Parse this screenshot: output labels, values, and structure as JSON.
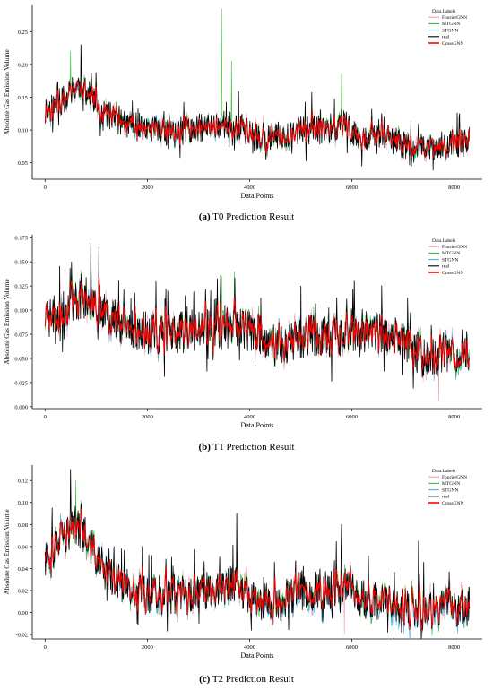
{
  "chart_data": [
    {
      "type": "line",
      "ylabel": "Absolute Gas Emission Volume",
      "xlabel": "Data Points",
      "xlim": [
        -250,
        8550
      ],
      "ylim": [
        0.025,
        0.29
      ],
      "xticks": [
        0,
        2000,
        4000,
        6000,
        8000
      ],
      "yticks": [
        0.05,
        0.1,
        0.15,
        0.2,
        0.25
      ],
      "ytick_labels": [
        "0.05",
        "0.10",
        "0.15",
        "0.20",
        "0.25"
      ],
      "legend_title": "Data Labels",
      "legend_position": "top-right",
      "series": [
        {
          "name": "FourierGNN",
          "color": "#f4a0b0"
        },
        {
          "name": "MTGNN",
          "color": "#33c633"
        },
        {
          "name": "STGNN",
          "color": "#4ab5e8"
        },
        {
          "name": "real",
          "color": "#000000"
        },
        {
          "name": "CrossGNN",
          "color": "#ff0000"
        }
      ],
      "x_end": 8300,
      "profile": [
        [
          0,
          0.13
        ],
        [
          300,
          0.14
        ],
        [
          500,
          0.16
        ],
        [
          700,
          0.17
        ],
        [
          900,
          0.15
        ],
        [
          1100,
          0.13
        ],
        [
          1300,
          0.12
        ],
        [
          1600,
          0.11
        ],
        [
          2000,
          0.1
        ],
        [
          2400,
          0.095
        ],
        [
          2800,
          0.1
        ],
        [
          3200,
          0.105
        ],
        [
          3500,
          0.11
        ],
        [
          3800,
          0.105
        ],
        [
          4100,
          0.09
        ],
        [
          4500,
          0.09
        ],
        [
          5000,
          0.1
        ],
        [
          5500,
          0.1
        ],
        [
          5800,
          0.11
        ],
        [
          6200,
          0.09
        ],
        [
          6800,
          0.085
        ],
        [
          7200,
          0.07
        ],
        [
          7600,
          0.075
        ],
        [
          8000,
          0.08
        ],
        [
          8300,
          0.08
        ]
      ],
      "amplitude": 0.022,
      "spikes": [
        {
          "x": 3450,
          "y": 0.285,
          "series": "MTGNN"
        },
        {
          "x": 3650,
          "y": 0.205,
          "series": "MTGNN"
        },
        {
          "x": 5800,
          "y": 0.185,
          "series": "MTGNN"
        },
        {
          "x": 700,
          "y": 0.23,
          "series": "real"
        },
        {
          "x": 500,
          "y": 0.22,
          "series": "MTGNN"
        }
      ],
      "seed": 11,
      "caption_letter": "(a)",
      "caption_text": " T0 Prediction Result"
    },
    {
      "type": "line",
      "ylabel": "Absolute Gas Emission Volume",
      "xlabel": "Data Points",
      "xlim": [
        -250,
        8550
      ],
      "ylim": [
        -0.002,
        0.178
      ],
      "xticks": [
        0,
        2000,
        4000,
        6000,
        8000
      ],
      "yticks": [
        0.0,
        0.025,
        0.05,
        0.075,
        0.1,
        0.125,
        0.15,
        0.175
      ],
      "ytick_labels": [
        "0.000",
        "0.025",
        "0.050",
        "0.075",
        "0.100",
        "0.125",
        "0.150",
        "0.175"
      ],
      "legend_title": "Data Labels",
      "legend_position": "top-right",
      "series": [
        {
          "name": "FourierGNN",
          "color": "#f4a0b0"
        },
        {
          "name": "MTGNN",
          "color": "#33c633"
        },
        {
          "name": "STGNN",
          "color": "#4ab5e8"
        },
        {
          "name": "real",
          "color": "#000000"
        },
        {
          "name": "CrossGNN",
          "color": "#ff0000"
        }
      ],
      "x_end": 8300,
      "profile": [
        [
          0,
          0.09
        ],
        [
          300,
          0.1
        ],
        [
          600,
          0.11
        ],
        [
          900,
          0.115
        ],
        [
          1200,
          0.1
        ],
        [
          1500,
          0.085
        ],
        [
          2000,
          0.075
        ],
        [
          2500,
          0.075
        ],
        [
          3000,
          0.08
        ],
        [
          3500,
          0.08
        ],
        [
          4000,
          0.08
        ],
        [
          4300,
          0.07
        ],
        [
          4700,
          0.065
        ],
        [
          5200,
          0.075
        ],
        [
          5600,
          0.07
        ],
        [
          6000,
          0.08
        ],
        [
          6500,
          0.075
        ],
        [
          7000,
          0.07
        ],
        [
          7400,
          0.05
        ],
        [
          7800,
          0.055
        ],
        [
          8300,
          0.06
        ]
      ],
      "amplitude": 0.022,
      "spikes": [
        {
          "x": 900,
          "y": 0.17,
          "series": "real"
        },
        {
          "x": 3700,
          "y": 0.14,
          "series": "MTGNN"
        },
        {
          "x": 3450,
          "y": 0.135,
          "series": "MTGNN"
        },
        {
          "x": 6050,
          "y": 0.13,
          "series": "real"
        },
        {
          "x": 5000,
          "y": 0.125,
          "series": "real"
        },
        {
          "x": 7700,
          "y": 0.005,
          "series": "FourierGNN"
        }
      ],
      "seed": 23,
      "caption_letter": "(b)",
      "caption_text": " T1 Prediction Result"
    },
    {
      "type": "line",
      "ylabel": "Absolute Gas Emission Volume",
      "xlabel": "Data Points",
      "xlim": [
        -250,
        8550
      ],
      "ylim": [
        -0.024,
        0.134
      ],
      "xticks": [
        0,
        2000,
        4000,
        6000,
        8000
      ],
      "yticks": [
        -0.02,
        0.0,
        0.02,
        0.04,
        0.06,
        0.08,
        0.1,
        0.12
      ],
      "ytick_labels": [
        "-0.02",
        "0.00",
        "0.02",
        "0.04",
        "0.06",
        "0.08",
        "0.10",
        "0.12"
      ],
      "legend_title": "Data Labels",
      "legend_position": "top-right",
      "series": [
        {
          "name": "FourierGNN",
          "color": "#f4a0b0"
        },
        {
          "name": "MTGNN",
          "color": "#33c633"
        },
        {
          "name": "STGNN",
          "color": "#4ab5e8"
        },
        {
          "name": "real",
          "color": "#000000"
        },
        {
          "name": "CrossGNN",
          "color": "#ff0000"
        }
      ],
      "x_end": 8300,
      "profile": [
        [
          0,
          0.05
        ],
        [
          200,
          0.06
        ],
        [
          400,
          0.07
        ],
        [
          600,
          0.08
        ],
        [
          800,
          0.07
        ],
        [
          1000,
          0.05
        ],
        [
          1300,
          0.03
        ],
        [
          1700,
          0.02
        ],
        [
          2200,
          0.015
        ],
        [
          2800,
          0.015
        ],
        [
          3300,
          0.02
        ],
        [
          3700,
          0.025
        ],
        [
          4100,
          0.01
        ],
        [
          4600,
          0.01
        ],
        [
          5000,
          0.02
        ],
        [
          5500,
          0.02
        ],
        [
          5900,
          0.025
        ],
        [
          6300,
          0.01
        ],
        [
          6800,
          0.01
        ],
        [
          7300,
          0.0
        ],
        [
          7800,
          0.005
        ],
        [
          8300,
          0.005
        ]
      ],
      "amplitude": 0.018,
      "spikes": [
        {
          "x": 500,
          "y": 0.13,
          "series": "real"
        },
        {
          "x": 600,
          "y": 0.12,
          "series": "MTGNN"
        },
        {
          "x": 1350,
          "y": 0.06,
          "series": "real"
        },
        {
          "x": 3750,
          "y": 0.09,
          "series": "real"
        },
        {
          "x": 5800,
          "y": 0.08,
          "series": "real"
        },
        {
          "x": 7300,
          "y": 0.065,
          "series": "real"
        },
        {
          "x": 5850,
          "y": -0.02,
          "series": "FourierGNN"
        }
      ],
      "seed": 37,
      "caption_letter": "(c)",
      "caption_text": " T2 Prediction Result"
    }
  ]
}
